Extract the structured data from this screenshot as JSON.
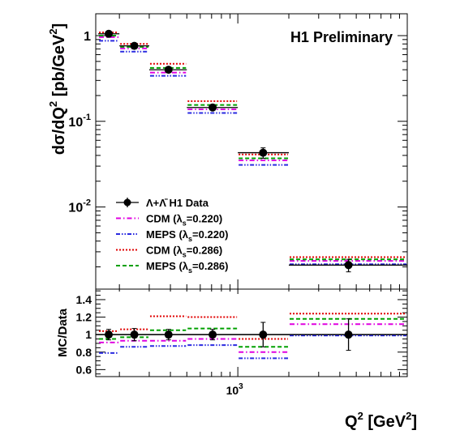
{
  "chart_data": [
    {
      "type": "scatter",
      "title": "H1 Preliminary",
      "xlabel_main": "Q",
      "xlabel_sup": "2",
      "xlabel_unit_open": " [GeV",
      "xlabel_unit_sup": "2",
      "xlabel_unit_close": "]",
      "ylabel_main": "dσ/dQ",
      "ylabel_sup": "2",
      "ylabel_unit_open": " [pb/GeV",
      "ylabel_unit_sup": "2",
      "ylabel_unit_close": "]",
      "x_scale": "log",
      "y_scale": "log",
      "xlim": [
        145,
        10000
      ],
      "ylim": [
        0.0011,
        1.8
      ],
      "bins": [
        [
          150,
          200
        ],
        [
          200,
          300
        ],
        [
          300,
          500
        ],
        [
          500,
          1000
        ],
        [
          1000,
          2000
        ],
        [
          2000,
          10000
        ]
      ],
      "x_ticks": [
        {
          "base": "10",
          "exp": "3",
          "value": 1000
        }
      ],
      "y_ticks": [
        {
          "base": "1",
          "exp": "",
          "value": 1
        },
        {
          "base": "10",
          "exp": "-1",
          "value": 0.1
        },
        {
          "base": "10",
          "exp": "-2",
          "value": 0.01
        }
      ],
      "series": [
        {
          "name": "Λ+Λ̄ H1 Data",
          "style": "data",
          "color": "#000000",
          "x": [
            173,
            245,
            390,
            710,
            1410,
            4500
          ],
          "values": [
            1.05,
            0.76,
            0.4,
            0.145,
            0.043,
            0.0021
          ],
          "yerr": [
            0.08,
            0.05,
            0.025,
            0.009,
            0.006,
            0.00035
          ]
        },
        {
          "name": "CDM (λs=0.220)",
          "style": "dashdot",
          "color": "#e000e0",
          "values": [
            0.96,
            0.71,
            0.37,
            0.138,
            0.035,
            0.00235
          ]
        },
        {
          "name": "MEPS (λs=0.220)",
          "style": "dashdotdot",
          "color": "#2a2ae0",
          "values": [
            0.87,
            0.65,
            0.34,
            0.125,
            0.031,
            0.00215
          ]
        },
        {
          "name": "CDM (λs=0.286)",
          "style": "dotted",
          "color": "#e00000",
          "values": [
            1.09,
            0.8,
            0.47,
            0.172,
            0.041,
            0.0026
          ]
        },
        {
          "name": "MEPS (λs=0.286)",
          "style": "dashed",
          "color": "#00a000",
          "values": [
            1.0,
            0.74,
            0.42,
            0.155,
            0.037,
            0.00245
          ]
        }
      ],
      "legend_position": "bottom-left"
    },
    {
      "type": "scatter",
      "ylabel": "MC/Data",
      "x_scale": "log",
      "xlim": [
        145,
        10000
      ],
      "ylim": [
        0.52,
        1.52
      ],
      "y_ticks": [
        "0.6",
        "0.8",
        "1",
        "1.2",
        "1.4"
      ],
      "reference_line": 1,
      "bins": [
        [
          150,
          200
        ],
        [
          200,
          300
        ],
        [
          300,
          500
        ],
        [
          500,
          1000
        ],
        [
          1000,
          2000
        ],
        [
          2000,
          10000
        ]
      ],
      "series": [
        {
          "name": "H1 Data",
          "style": "data",
          "color": "#000000",
          "x": [
            173,
            245,
            390,
            710,
            1410,
            4500
          ],
          "values": [
            1,
            1,
            1,
            1,
            1,
            1
          ],
          "yerr": [
            0.06,
            0.07,
            0.06,
            0.06,
            0.14,
            0.18
          ]
        },
        {
          "name": "CDM (λs=0.220)",
          "style": "dashdot",
          "color": "#e000e0",
          "values": [
            0.91,
            0.93,
            0.93,
            0.95,
            0.8,
            1.12
          ]
        },
        {
          "name": "MEPS (λs=0.220)",
          "style": "dashdotdot",
          "color": "#2a2ae0",
          "values": [
            0.79,
            0.86,
            0.87,
            0.88,
            0.73,
            0.99
          ]
        },
        {
          "name": "CDM (λs=0.286)",
          "style": "dotted",
          "color": "#e00000",
          "values": [
            1.04,
            1.06,
            1.21,
            1.2,
            0.95,
            1.24
          ]
        },
        {
          "name": "MEPS (λs=0.286)",
          "style": "dashed",
          "color": "#00a000",
          "values": [
            0.95,
            0.97,
            1.05,
            1.07,
            0.86,
            1.18
          ]
        }
      ]
    }
  ],
  "legend": [
    {
      "main": "Λ+Λ̄ H1 Data",
      "sub": "",
      "tail": "",
      "style": "data",
      "color": "#000000"
    },
    {
      "main": "CDM (λ",
      "sub": "s",
      "tail": "=0.220)",
      "style": "dashdot",
      "color": "#e000e0"
    },
    {
      "main": "MEPS (λ",
      "sub": "s",
      "tail": "=0.220)",
      "style": "dashdotdot",
      "color": "#2a2ae0"
    },
    {
      "main": "CDM (λ",
      "sub": "s",
      "tail": "=0.286)",
      "style": "dotted",
      "color": "#e00000"
    },
    {
      "main": "MEPS (λ",
      "sub": "s",
      "tail": "=0.286)",
      "style": "dashed",
      "color": "#00a000"
    }
  ]
}
